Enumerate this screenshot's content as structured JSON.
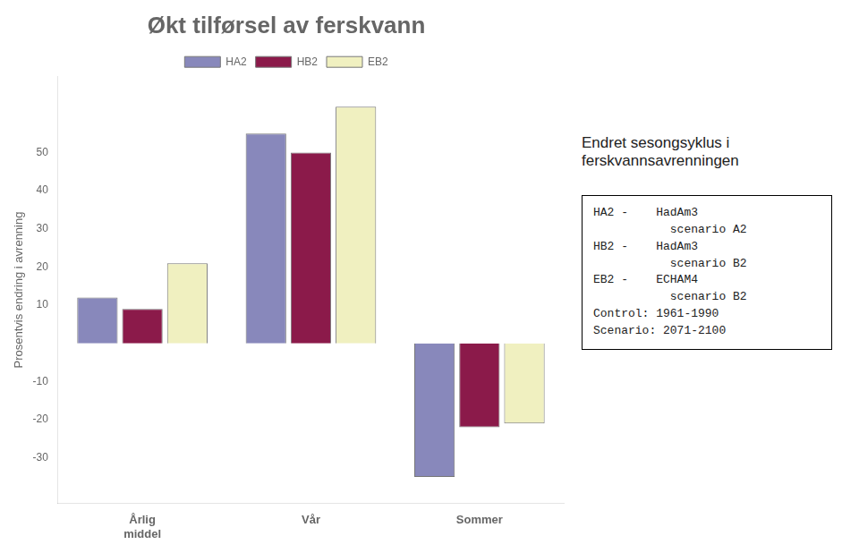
{
  "chart_data": {
    "type": "bar",
    "title": "Økt tilførsel av ferskvann",
    "ylabel": "Prosentvis endring i avrenning",
    "annotations": [
      "Endret sesongsyklus i\nferskvannsavrenningen",
      "HA2 -    HadAm3\n           scenario A2\nHB2 -    HadAm3\n           scenario B2\nEB2 -    ECHAM4\n           scenario B2\nControl: 1961-1990\nScenario: 2071-2100"
    ],
    "categories": [
      "Årlig\nmiddel",
      "Vår",
      "Sommer"
    ],
    "series": [
      {
        "name": "HA2",
        "color": "#8888bb",
        "values": [
          12,
          55,
          -35
        ]
      },
      {
        "name": "HB2",
        "color": "#8b1a4a",
        "values": [
          9,
          50,
          -22
        ]
      },
      {
        "name": "EB2",
        "color": "#f0f0c0",
        "values": [
          21,
          62,
          -21
        ]
      }
    ],
    "ylim": [
      -42,
      70
    ],
    "yticks": [
      -30,
      -20,
      -10,
      10,
      20,
      30,
      40,
      50
    ],
    "grid": false,
    "legend": "top"
  }
}
